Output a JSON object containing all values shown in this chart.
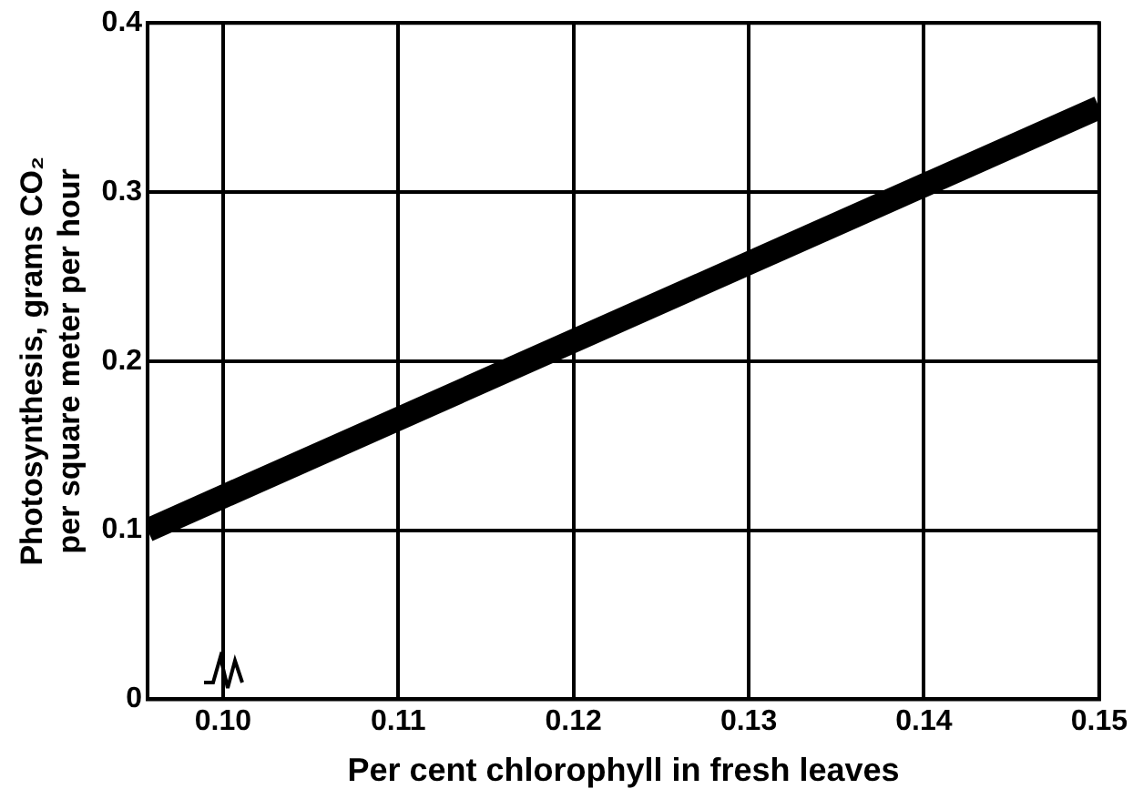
{
  "chart_data": {
    "type": "line",
    "xlabel": "Per cent chlorophyll in fresh leaves",
    "ylabel": "Photosynthesis, grams CO₂\nper square meter per hour",
    "series": [
      {
        "color": "#000000",
        "x": [
          0.0957,
          0.15
        ],
        "values": [
          0.1,
          0.35
        ]
      }
    ],
    "xlim": [
      0.0957,
      0.15
    ],
    "xticks": [
      {
        "value": 0.1,
        "label": "0.10"
      },
      {
        "value": 0.11,
        "label": "0.11"
      },
      {
        "value": 0.12,
        "label": "0.12"
      },
      {
        "value": 0.13,
        "label": "0.13"
      },
      {
        "value": 0.14,
        "label": "0.14"
      },
      {
        "value": 0.15,
        "label": "0.15"
      }
    ],
    "ylim": [
      0,
      0.4
    ],
    "yticks": [
      0,
      0.1,
      0.2,
      0.3,
      0.4
    ],
    "grid": true,
    "legend": false,
    "marker": "none",
    "line_style": "solid"
  }
}
